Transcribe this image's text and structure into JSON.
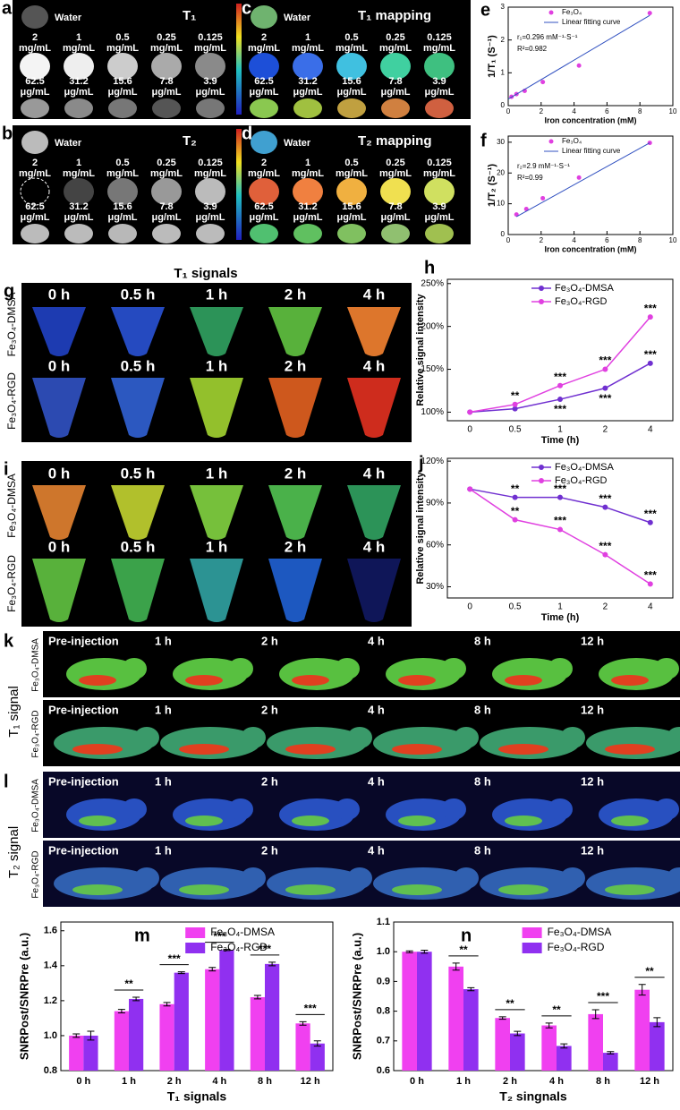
{
  "panels": {
    "concentrations": {
      "row1": [
        "2",
        "1",
        "0.5",
        "0.25",
        "0.125"
      ],
      "unit1": "mg/mL",
      "row2": [
        "62.5",
        "31.2",
        "15.6",
        "7.8",
        "3.9"
      ],
      "unit2": "μg/mL",
      "water": "Water"
    },
    "a": {
      "label": "a",
      "title": "T₁"
    },
    "b": {
      "label": "b",
      "title": "T₂"
    },
    "c": {
      "label": "c",
      "title": "T₁ mapping"
    },
    "d": {
      "label": "d",
      "title": "T₂ mapping"
    },
    "g": {
      "label": "g",
      "title": "T₁ signals"
    },
    "i": {
      "label": "i"
    },
    "tubes": {
      "times": [
        "0 h",
        "0.5 h",
        "1 h",
        "2 h",
        "4 h"
      ],
      "rows": [
        "Fe₃O₄-DMSA",
        "Fe₃O₄-RGD"
      ]
    },
    "k": {
      "label": "k",
      "title": "T₁ signal"
    },
    "l": {
      "label": "l",
      "title": "T₂ signal"
    },
    "mice": {
      "times": [
        "Pre-injection",
        "1 h",
        "2 h",
        "4 h",
        "8 h",
        "12 h"
      ],
      "rows": [
        "Fe₃O₄-DMSA",
        "Fe₃O₄-RGD"
      ]
    }
  },
  "chart_data": [
    {
      "type": "scatter",
      "label": "e",
      "xlabel": "Iron concentration (mM)",
      "ylabel": "1/T₁ (S⁻¹)",
      "xlim": [
        0,
        10
      ],
      "xticks": [
        0,
        2,
        4,
        6,
        8,
        10
      ],
      "ylim": [
        0,
        3
      ],
      "yticks": [
        0,
        1,
        2,
        3
      ],
      "annotations": [
        "r₁=0.296 mM⁻¹·S⁻¹",
        "R²=0.982"
      ],
      "series": [
        {
          "name": "Fe₃O₄",
          "color": "#e040e0",
          "style": "marker",
          "x": [
            0.2,
            0.5,
            1.0,
            2.1,
            4.3,
            8.6
          ],
          "values": [
            0.27,
            0.35,
            0.45,
            0.72,
            1.22,
            2.82
          ]
        },
        {
          "name": "Linear fitting curve",
          "color": "#3050c0",
          "style": "line",
          "x": [
            0,
            8.6
          ],
          "values": [
            0.2,
            2.75
          ]
        }
      ]
    },
    {
      "type": "scatter",
      "label": "f",
      "xlabel": "Iron concentration (mM)",
      "ylabel": "1/T₂ (S⁻¹)",
      "xlim": [
        0,
        10
      ],
      "xticks": [
        0,
        2,
        4,
        6,
        8,
        10
      ],
      "ylim": [
        0,
        32
      ],
      "yticks": [
        0,
        10,
        20,
        30
      ],
      "annotations": [
        "r₂=2.9 mM⁻¹·S⁻¹",
        "R²=0.99"
      ],
      "series": [
        {
          "name": "Fe₃O₄",
          "color": "#e040e0",
          "style": "marker",
          "x": [
            0.5,
            1.1,
            2.1,
            4.3,
            8.6
          ],
          "values": [
            6.5,
            8.3,
            11.8,
            18.5,
            29.8
          ]
        },
        {
          "name": "Linear fitting curve",
          "color": "#3050c0",
          "style": "line",
          "x": [
            0.5,
            8.6
          ],
          "values": [
            5.8,
            29.8
          ]
        }
      ]
    },
    {
      "type": "line",
      "label": "h",
      "xlabel": "Time (h)",
      "ylabel": "Relative signal intensity",
      "categories": [
        "0",
        "0.5",
        "1",
        "2",
        "4"
      ],
      "ylim": [
        90,
        255
      ],
      "yticks": [
        {
          "value": 100,
          "label": "100%"
        },
        {
          "value": 150,
          "label": "150%"
        },
        {
          "value": 200,
          "label": "200%"
        },
        {
          "value": 250,
          "label": "250%"
        }
      ],
      "series": [
        {
          "name": "Fe₃O₄-DMSA",
          "color": "#7030d0",
          "values": [
            100,
            104,
            115,
            128,
            157
          ],
          "labels": [
            null,
            null,
            "***",
            "***",
            "***"
          ]
        },
        {
          "name": "Fe₃O₄-RGD",
          "color": "#e040e0",
          "values": [
            100,
            109,
            131,
            150,
            211
          ],
          "labels": [
            null,
            "**",
            "***",
            "***",
            "***"
          ]
        }
      ]
    },
    {
      "type": "line",
      "label": "j",
      "xlabel": "Time (h)",
      "ylabel": "Relative signal intensity",
      "categories": [
        "0",
        "0.5",
        "1",
        "2",
        "4"
      ],
      "ylim": [
        22,
        122
      ],
      "yticks": [
        {
          "value": 30,
          "label": "30%"
        },
        {
          "value": 60,
          "label": "60%"
        },
        {
          "value": 90,
          "label": "90%"
        },
        {
          "value": 120,
          "label": "120%"
        }
      ],
      "series": [
        {
          "name": "Fe₃O₄-DMSA",
          "color": "#7030d0",
          "values": [
            100,
            94,
            94,
            87,
            76
          ],
          "labels": [
            null,
            "**",
            "***",
            "***",
            "***"
          ]
        },
        {
          "name": "Fe₃O₄-RGD",
          "color": "#e040e0",
          "values": [
            100,
            78,
            71,
            53,
            32
          ],
          "labels": [
            null,
            "**",
            "***",
            "***",
            "***"
          ]
        }
      ]
    },
    {
      "type": "bar",
      "label": "m",
      "xlabel": "T₁ signals",
      "ylabel": "SNRPost/SNRPre (a.u.)",
      "categories": [
        "0 h",
        "1 h",
        "2 h",
        "4 h",
        "8 h",
        "12 h"
      ],
      "ylim": [
        0.8,
        1.65
      ],
      "yticks": [
        0.8,
        {
          "value": 1,
          "label": "1.0"
        },
        1.2,
        1.4,
        1.6
      ],
      "significance": [
        null,
        "**",
        "***",
        "***",
        "***",
        "***"
      ],
      "series": [
        {
          "name": "Fe₃O₄-DMSA",
          "color": "#f040f0",
          "values": [
            1.0,
            1.14,
            1.18,
            1.38,
            1.22,
            1.07
          ],
          "errors": [
            0.01,
            0.01,
            0.01,
            0.01,
            0.01,
            0.01
          ]
        },
        {
          "name": "Fe₃O₄-RGD",
          "color": "#9030f0",
          "values": [
            1.0,
            1.21,
            1.36,
            1.49,
            1.41,
            0.955
          ],
          "errors": [
            0.025,
            0.01,
            0.005,
            0.003,
            0.01,
            0.015
          ]
        }
      ]
    },
    {
      "type": "bar",
      "label": "n",
      "xlabel": "T₂ singnals",
      "ylabel": "SNRPost/SNRPre (a.u.)",
      "categories": [
        "0 h",
        "1 h",
        "2 h",
        "4 h",
        "8 h",
        "12 h"
      ],
      "ylim": [
        0.6,
        1.1
      ],
      "yticks": [
        0.6,
        0.7,
        0.8,
        0.9,
        {
          "value": 1,
          "label": "1.0"
        },
        1.1
      ],
      "significance": [
        null,
        "**",
        "**",
        "**",
        "***",
        "**"
      ],
      "series": [
        {
          "name": "Fe₃O₄-DMSA",
          "color": "#f040f0",
          "values": [
            1.0,
            0.95,
            0.777,
            0.752,
            0.79,
            0.872
          ],
          "errors": [
            0.003,
            0.012,
            0.004,
            0.008,
            0.015,
            0.018
          ]
        },
        {
          "name": "Fe₃O₄-RGD",
          "color": "#9030f0",
          "values": [
            1.0,
            0.874,
            0.725,
            0.683,
            0.66,
            0.763
          ],
          "errors": [
            0.005,
            0.005,
            0.007,
            0.007,
            0.004,
            0.015
          ]
        }
      ]
    }
  ]
}
